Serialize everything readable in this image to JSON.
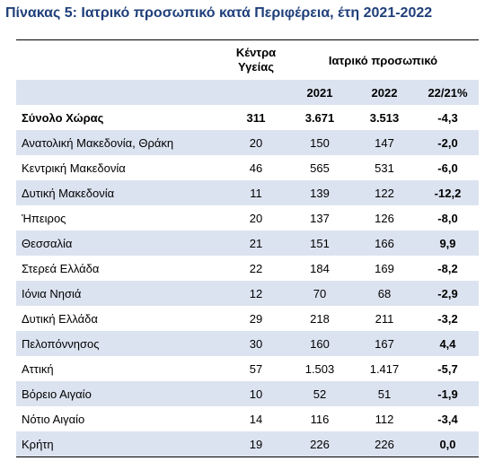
{
  "title": "Πίνακας 5: Ιατρικό προσωπικό κατά Περιφέρεια, έτη 2021-2022",
  "header": {
    "kentra_line1": "Κέντρα",
    "kentra_line2": "Υγείας",
    "group_label": "Ιατρικό προσωπικό",
    "col_2021": "2021",
    "col_2022": "2022",
    "col_change": "22/21%"
  },
  "rows": [
    {
      "region": "Σύνολο Χώρας",
      "centers": "311",
      "y2021": "3.671",
      "y2022": "3.513",
      "change": "-4,3"
    },
    {
      "region": "Ανατολική Μακεδονία, Θράκη",
      "centers": "20",
      "y2021": "150",
      "y2022": "147",
      "change": "-2,0"
    },
    {
      "region": "Κεντρική Μακεδονία",
      "centers": "46",
      "y2021": "565",
      "y2022": "531",
      "change": "-6,0"
    },
    {
      "region": "Δυτική Μακεδονία",
      "centers": "11",
      "y2021": "139",
      "y2022": "122",
      "change": "-12,2"
    },
    {
      "region": "Ήπειρος",
      "centers": "20",
      "y2021": "137",
      "y2022": "126",
      "change": "-8,0"
    },
    {
      "region": "Θεσσαλία",
      "centers": "21",
      "y2021": "151",
      "y2022": "166",
      "change": "9,9"
    },
    {
      "region": "Στερεά Ελλάδα",
      "centers": "22",
      "y2021": "184",
      "y2022": "169",
      "change": "-8,2"
    },
    {
      "region": "Ιόνια Νησιά",
      "centers": "12",
      "y2021": "70",
      "y2022": "68",
      "change": "-2,9"
    },
    {
      "region": "Δυτική Ελλάδα",
      "centers": "29",
      "y2021": "218",
      "y2022": "211",
      "change": "-3,2"
    },
    {
      "region": "Πελοπόννησος",
      "centers": "30",
      "y2021": "160",
      "y2022": "167",
      "change": "4,4"
    },
    {
      "region": "Αττική",
      "centers": "57",
      "y2021": "1.503",
      "y2022": "1.417",
      "change": "-5,7"
    },
    {
      "region": "Βόρειο Αιγαίο",
      "centers": "10",
      "y2021": "52",
      "y2022": "51",
      "change": "-1,9"
    },
    {
      "region": "Νότιο Αιγαίο",
      "centers": "14",
      "y2021": "116",
      "y2022": "112",
      "change": "-3,4"
    },
    {
      "region": "Κρήτη",
      "centers": "19",
      "y2021": "226",
      "y2022": "226",
      "change": "0,0"
    }
  ]
}
